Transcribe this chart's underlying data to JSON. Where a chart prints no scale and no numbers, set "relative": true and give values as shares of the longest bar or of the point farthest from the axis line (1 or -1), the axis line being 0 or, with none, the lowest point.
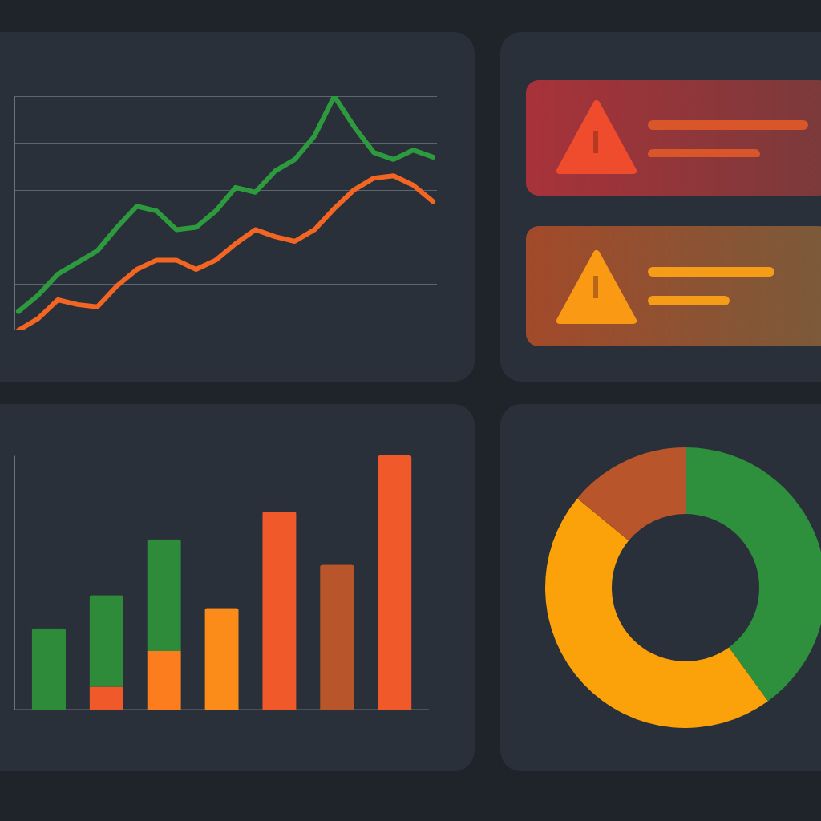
{
  "chart_data": [
    {
      "type": "line",
      "relative": true,
      "grid": "y",
      "categories": [
        null,
        null,
        null,
        null,
        null,
        null,
        null,
        null,
        null,
        null,
        null,
        null,
        null,
        null,
        null,
        null,
        null,
        null,
        null,
        null,
        null,
        null
      ],
      "series": [
        {
          "color": "#2e9a3e",
          "values": [
            0.08,
            0.15,
            0.24,
            0.29,
            0.34,
            0.44,
            0.53,
            0.51,
            0.43,
            0.44,
            0.51,
            0.61,
            0.59,
            0.68,
            0.73,
            0.83,
            1.0,
            0.87,
            0.76,
            0.73,
            0.77,
            0.74
          ]
        },
        {
          "color": "#f26522",
          "values": [
            0.0,
            0.05,
            0.13,
            0.11,
            0.1,
            0.19,
            0.26,
            0.3,
            0.3,
            0.26,
            0.3,
            0.37,
            0.43,
            0.4,
            0.38,
            0.43,
            0.52,
            0.6,
            0.65,
            0.66,
            0.62,
            0.55
          ]
        }
      ]
    },
    {
      "type": "bar",
      "relative": true,
      "stacked": true,
      "categories": [
        null,
        null,
        null,
        null,
        null,
        null,
        null
      ],
      "series": [
        {
          "colors": [
            "#2e8b3a",
            "#f05a2a",
            "#fb7d1d",
            "#fb8c19",
            "#f05a2a",
            "#b9552b",
            "#f05a2a"
          ],
          "values": [
            0.32,
            0.09,
            0.23,
            0.4,
            0.78,
            0.57,
            1.0
          ]
        },
        {
          "color": "#2e8b3a",
          "values": [
            null,
            0.36,
            0.44,
            null,
            null,
            null,
            null
          ]
        }
      ]
    },
    {
      "type": "donut",
      "categories": [
        null,
        null,
        null
      ],
      "values": [
        40,
        46,
        14
      ],
      "colors": [
        "#2e8f3c",
        "#fba10a",
        "#b9552b"
      ]
    }
  ]
}
